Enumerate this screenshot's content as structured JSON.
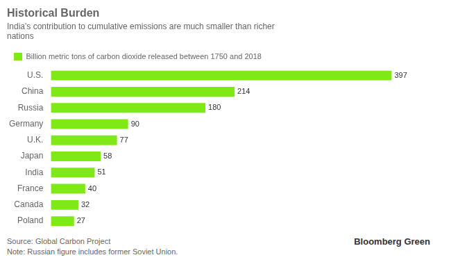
{
  "chart_data": {
    "type": "bar",
    "orientation": "horizontal",
    "title": "Historical Burden",
    "subtitle": "India's contribution to cumulative emissions are much smaller than richer\nnations",
    "categories": [
      "U.S.",
      "China",
      "Russia",
      "Germany",
      "U.K.",
      "Japan",
      "India",
      "France",
      "Canada",
      "Poland"
    ],
    "series": [
      {
        "name": "Billion metric tons of carbon dioxide released between 1750 and 2018",
        "color": "#7FE817",
        "values": [
          397,
          214,
          180,
          90,
          77,
          58,
          51,
          40,
          32,
          27
        ]
      }
    ],
    "xlim": [
      0,
      450
    ],
    "grid": false,
    "legend": "upper left",
    "data_labels": true,
    "tick_labels": "y",
    "annotations": [
      "Source: Global Carbon Project",
      "Note: Russian figure includes former Soviet Union.",
      "Bloomberg Green"
    ]
  }
}
